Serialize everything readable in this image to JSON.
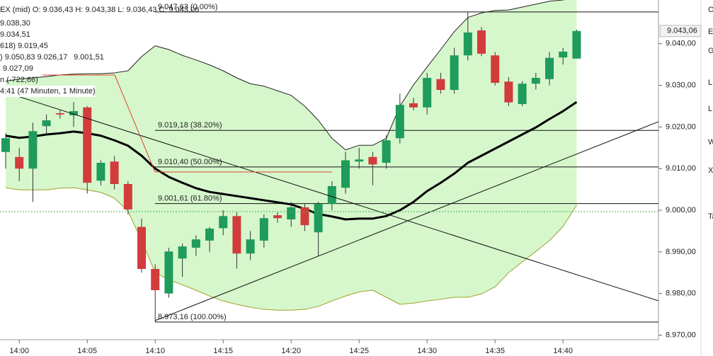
{
  "chart_data": {
    "type": "candlestick",
    "header": [
      "EX (mid)  O: 9.036,43  H: 9.043,38  L: 9.036,43  C: 9.043,06",
      "9.038,30",
      "9.034,51",
      "618)  9.019,45",
      ")  9.050,83  9.026,17",
      "9.001,51",
      "9.027,09",
      "n (-722,66)",
      "4:41 (47 Minuten, 1 Minute)"
    ],
    "side_letters": [
      "O",
      "E",
      "G",
      "L",
      "L",
      "W",
      "X",
      "Ta"
    ],
    "categories": [
      null,
      "14:00",
      null,
      null,
      null,
      null,
      "14:05",
      null,
      null,
      null,
      null,
      "14:10",
      null,
      null,
      null,
      null,
      "14:15",
      null,
      null,
      null,
      null,
      "14:20",
      null,
      null,
      null,
      null,
      "14:25",
      null,
      null,
      null,
      null,
      "14:30",
      null,
      null,
      null,
      null,
      "14:35",
      null,
      null,
      null,
      null,
      "14:40",
      null
    ],
    "open": [
      9014.0,
      9012.8,
      9010.0,
      9020.2,
      9023.3,
      9022.8,
      9024.7,
      9007.1,
      9011.7,
      9006.3,
      8996.0,
      8985.9,
      8980.0,
      8988.4,
      8991.0,
      8992.7,
      8995.7,
      8998.6,
      8989.6,
      8992.7,
      8998.8,
      8997.8,
      9000.7,
      8994.7,
      9001.5,
      9005.4,
      9011.7,
      9012.8,
      9011.4,
      9017.3,
      9025.7,
      9024.7,
      9031.5,
      9028.9,
      9037.2,
      9043.2,
      9037.2,
      9030.9,
      9025.5,
      9030.4,
      9031.5,
      9036.7,
      9036.43
    ],
    "high": [
      9018.5,
      9015,
      9021,
      9023,
      9024,
      9026,
      9025,
      9012,
      9013,
      9007,
      8998,
      8987,
      8991,
      8992,
      8994,
      8996,
      9000,
      8999.5,
      8995,
      8999,
      8999.5,
      9002,
      9001.5,
      9002,
      9007,
      9014,
      9015,
      9014,
      9018,
      9028,
      9027,
      9033,
      9033,
      9039,
      9047.6,
      9044,
      9038,
      9032,
      9031,
      9033,
      9038,
      9039,
      9043.38
    ],
    "low": [
      9010,
      9007,
      9002,
      9018,
      9022,
      9020,
      9004,
      9006,
      9005,
      8999,
      8985,
      8973.16,
      8979,
      8984,
      8989,
      8990,
      8994,
      8986,
      8988,
      8991,
      8997,
      8996,
      8995,
      8989,
      9000,
      9004,
      9010,
      9006,
      9010,
      9016,
      9024,
      9023,
      9028,
      9028,
      9036,
      9037,
      9030,
      9025,
      9025,
      9029,
      9030,
      9035,
      9036.43
    ],
    "close": [
      9017.3,
      9010.0,
      9019.0,
      9021.6,
      9023.0,
      9023.8,
      9006.6,
      9011.4,
      9006.3,
      9000.2,
      8985.9,
      8980.8,
      8990.1,
      8991.3,
      8993.0,
      8995.6,
      8998.6,
      8989.6,
      8993.0,
      8998.1,
      8998.1,
      9000.7,
      8996.4,
      9001.5,
      9005.8,
      9012.0,
      9012.2,
      9011.0,
      9016.8,
      9025.3,
      9024.7,
      9031.8,
      9028.9,
      9037.2,
      9042.7,
      9037.6,
      9030.6,
      9025.9,
      9030.4,
      9031.8,
      9036.6,
      9038.1,
      9043.06
    ],
    "last_label": "9.043,06",
    "up_color": "#1f9b5c",
    "down_color": "#d23c3c",
    "band_fill": "#d6f7cc",
    "overlays": [
      {
        "color": "#222222",
        "width": 1,
        "values": [
          9031.0,
          9031.5,
          9031.8,
          9032.1,
          9032.5,
          9032.7,
          9032.8,
          9032.8,
          9033.0,
          9033.5,
          9036.9,
          9039.5,
          9038.6,
          9037.2,
          9036.1,
          9034.9,
          9033.5,
          9031.8,
          9030.4,
          9029.8,
          9028.7,
          9027.6,
          9025.0,
          9021.6,
          9017.3,
          9014.5,
          9015.6,
          9015.6,
          9017.3,
          9025.0,
          9030.1,
          9034.4,
          9038.6,
          9042.9,
          9046.3,
          9047.4,
          9048.0,
          9048.1,
          9048.8,
          9049.5,
          9050.2,
          9050.5,
          9051.4
        ]
      },
      {
        "color": "#a0a028",
        "width": 1,
        "values": [
          9005.4,
          9004.9,
          9004.9,
          9004.9,
          9005.3,
          9005.4,
          9004.9,
          9004.3,
          9002.9,
          8999.8,
          8992.7,
          8985.0,
          8983.3,
          8982.1,
          8980.8,
          8979.4,
          8978.2,
          8977.4,
          8976.7,
          8976.2,
          8976.0,
          8976.0,
          8976.2,
          8976.9,
          8978.2,
          8979.4,
          8980.4,
          8980.8,
          8979.1,
          8977.4,
          8977.7,
          8978.2,
          8978.6,
          8979.1,
          8979.1,
          8979.9,
          8981.6,
          8985.0,
          8987.6,
          8990.1,
          8992.7,
          8996.1,
          9001.2
        ]
      },
      {
        "color": "#000000",
        "width": 3,
        "values": [
          9017.9,
          9017.4,
          9017.7,
          9018.2,
          9018.5,
          9018.9,
          9018.5,
          9017.9,
          9016.8,
          9015.5,
          9013.1,
          9010.0,
          9008.0,
          9006.6,
          9005.3,
          9004.4,
          9003.9,
          9003.4,
          9002.9,
          9002.4,
          9001.9,
          9001.4,
          9000.3,
          8999.1,
          8998.5,
          8997.8,
          8998.0,
          8998.0,
          8998.6,
          9000.0,
          9002.0,
          9004.6,
          9006.6,
          9008.8,
          9011.4,
          9013.1,
          9014.8,
          9016.5,
          9018.2,
          9019.9,
          9021.9,
          9023.8,
          9026.0
        ]
      }
    ],
    "fib_levels": [
      {
        "value": 9047.63,
        "label": "9.047,63 (0.00%)"
      },
      {
        "value": 9019.18,
        "label": "9.019,18 (38.20%)"
      },
      {
        "value": 9010.4,
        "label": "9.010,40 (50.00%)"
      },
      {
        "value": 9001.61,
        "label": "9.001,61 (61.80%)"
      },
      {
        "value": 8973.16,
        "label": "8.973,16 (100.00%)"
      }
    ],
    "ylim": [
      8968.9,
      9050.5
    ],
    "yticks": [
      {
        "value": 8970,
        "label": "8.970,00"
      },
      {
        "value": 8980,
        "label": "8.980,00"
      },
      {
        "value": 8990,
        "label": "8.990,00"
      },
      {
        "value": 9000,
        "label": "9.000,00"
      },
      {
        "value": 9010,
        "label": "9.010,00"
      },
      {
        "value": 9020,
        "label": "9.020,00"
      },
      {
        "value": 9030,
        "label": "9.030,00"
      },
      {
        "value": 9040,
        "label": "9.040,00"
      }
    ]
  }
}
